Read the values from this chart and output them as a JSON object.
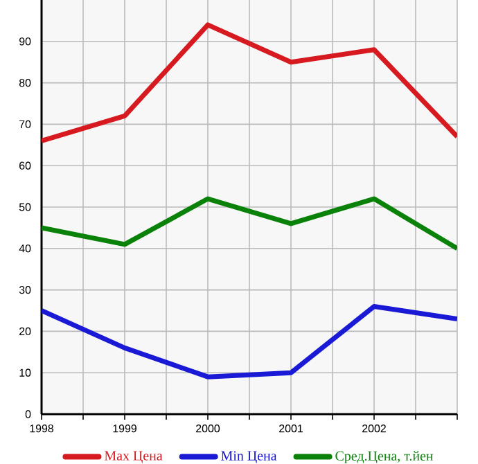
{
  "chart_data": {
    "type": "line",
    "x": [
      1998,
      1999,
      2000,
      2001,
      2002,
      2003
    ],
    "series": [
      {
        "name": "Max Цена",
        "color": "#d61a1f",
        "values": [
          66,
          72,
          94,
          85,
          88,
          67
        ]
      },
      {
        "name": "Min Цена",
        "color": "#1a1ad6",
        "values": [
          25,
          16,
          9,
          10,
          26,
          23
        ]
      },
      {
        "name": "Сред.Цена, т.йен",
        "color": "#0a820a",
        "values": [
          45,
          41,
          52,
          46,
          52,
          40
        ]
      }
    ],
    "xlim": [
      1998,
      2003
    ],
    "xticks": [
      1998,
      {
        "value": 1998.5,
        "label": null
      },
      1999,
      {
        "value": 1999.5,
        "label": null
      },
      2000,
      {
        "value": 2000.5,
        "label": null
      },
      2001,
      {
        "value": 2001.5,
        "label": null
      },
      2002,
      {
        "value": 2002.5,
        "label": null
      },
      {
        "value": 2003,
        "label": null
      }
    ],
    "ylim": [
      0,
      100
    ],
    "yticks": [
      0,
      10,
      20,
      30,
      40,
      50,
      60,
      70,
      80,
      90
    ],
    "grid": true,
    "legend": "bottom",
    "marker": "none",
    "line_style": "solid"
  }
}
